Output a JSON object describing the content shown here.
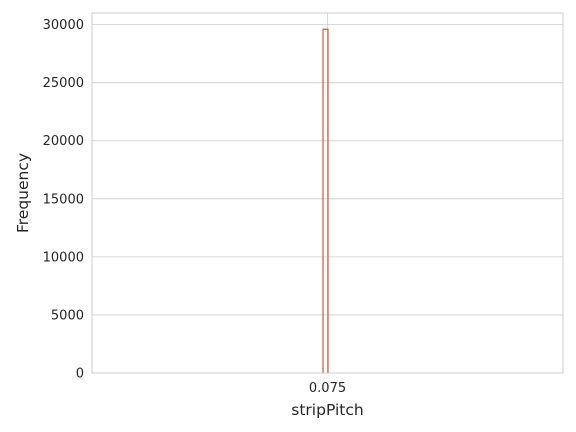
{
  "chart_data": {
    "type": "bar",
    "title": "",
    "xlabel": "stripPitch",
    "ylabel": "Frequency",
    "x_ticks": [
      "0.075"
    ],
    "y_ticks": [
      0,
      5000,
      10000,
      15000,
      20000,
      25000,
      30000
    ],
    "ylim": [
      0,
      31000
    ],
    "grid": true,
    "bars": [
      {
        "x": 0.075,
        "value": 29600,
        "color": "#d9553b"
      }
    ]
  }
}
